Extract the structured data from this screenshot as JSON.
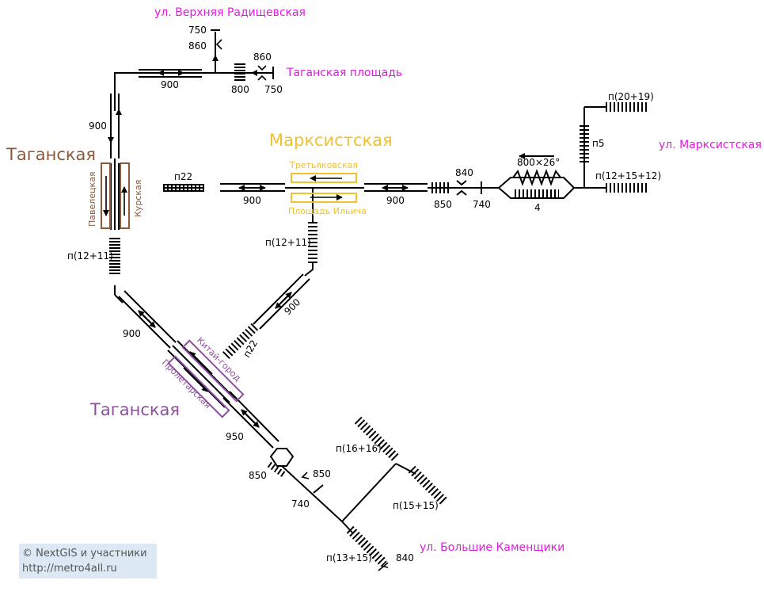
{
  "colors": {
    "track": "#000000",
    "exit": "#e01be0",
    "line_brown": "#8b5a3c",
    "line_yellow": "#f2c12e",
    "line_purple": "#8e4ea0",
    "credits_bg": "#dce8f4"
  },
  "exits": {
    "verkhnyaya": "ул. Верхняя Радищевская",
    "taganskaya_sq": "Таганская площадь",
    "marksistskaya": "ул. Марксистская",
    "bolshie": "ул. Большие Каменщики"
  },
  "stations": {
    "taganskaya_ring": "Таганская",
    "marksistskaya": "Марксистская",
    "taganskaya_tk": "Таганская"
  },
  "platforms": {
    "paveletskaya": "Павелецкая",
    "kurskaya": "Курская",
    "tretyakovskaya": "Третьяковская",
    "ilyicha": "Площадь Ильича",
    "kitay_gorod": "Китай-город",
    "proletarskaya": "Пролетарская"
  },
  "labels": {
    "l750a": "750",
    "l860a": "860",
    "l900a": "900",
    "l860b": "860",
    "l800a": "800",
    "l750b": "750",
    "l900b": "900",
    "n22a": "п22",
    "l900c": "900",
    "l900d": "900",
    "l840a": "840",
    "l850a": "850",
    "l740a": "740",
    "n20_19": "п(20+19)",
    "n5": "п5",
    "l800x26": "800×26°",
    "n12_15_12": "п(12+15+12)",
    "l4": "4",
    "n12_11a": "п(12+11)",
    "n12_11b": "п(12+11)",
    "l900e": "900",
    "n22b": "п22",
    "l900f": "900",
    "l950": "950",
    "l850b": "850",
    "l850c": "850",
    "l740b": "740",
    "n16_16": "п(16+16)",
    "n15_15": "п(15+15)",
    "n13_15": "п(13+15)",
    "l840b": "840"
  },
  "credits": {
    "line1": "© NextGIS и участники",
    "line2": "http://metro4all.ru"
  }
}
